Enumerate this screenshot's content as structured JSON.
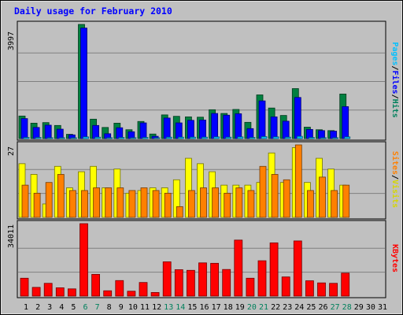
{
  "chart_data": [
    {
      "type": "bar",
      "title": "Daily usage for February 2010",
      "panel": "hits",
      "ymax_label": "3997",
      "ylim": [
        0,
        3997
      ],
      "categories": [
        "1",
        "2",
        "3",
        "4",
        "5",
        "6",
        "7",
        "8",
        "9",
        "10",
        "11",
        "12",
        "13",
        "14",
        "15",
        "16",
        "17",
        "18",
        "19",
        "20",
        "21",
        "22",
        "23",
        "24",
        "25",
        "26",
        "27",
        "28",
        "29",
        "30",
        "31"
      ],
      "right_label": [
        "Hits",
        "Files",
        "Pages"
      ],
      "series": [
        {
          "name": "Hits",
          "color": "#008040",
          "values": [
            790,
            540,
            560,
            460,
            150,
            3997,
            680,
            390,
            540,
            310,
            600,
            160,
            830,
            780,
            760,
            750,
            1010,
            880,
            1020,
            570,
            1530,
            1070,
            810,
            1750,
            400,
            310,
            280,
            1560,
            0,
            0,
            0
          ]
        },
        {
          "name": "Files",
          "color": "#0000ff",
          "values": [
            700,
            390,
            470,
            330,
            130,
            3870,
            460,
            170,
            380,
            240,
            550,
            80,
            720,
            550,
            640,
            650,
            880,
            820,
            870,
            350,
            1320,
            760,
            610,
            1440,
            320,
            280,
            260,
            1120,
            0,
            0,
            0
          ]
        },
        {
          "name": "Pages",
          "color": "#00c0ff",
          "values": [
            40,
            40,
            30,
            30,
            20,
            60,
            50,
            30,
            40,
            30,
            40,
            20,
            50,
            50,
            50,
            50,
            60,
            50,
            60,
            40,
            70,
            60,
            50,
            80,
            40,
            30,
            30,
            60,
            0,
            0,
            0
          ]
        }
      ]
    },
    {
      "type": "bar",
      "panel": "visits",
      "ymax_label": "27",
      "ylim": [
        0,
        27
      ],
      "categories": [
        "1",
        "2",
        "3",
        "4",
        "5",
        "6",
        "7",
        "8",
        "9",
        "10",
        "11",
        "12",
        "13",
        "14",
        "15",
        "16",
        "17",
        "18",
        "19",
        "20",
        "21",
        "22",
        "23",
        "24",
        "25",
        "26",
        "27",
        "28",
        "29",
        "30",
        "31"
      ],
      "right_label": [
        "Visits",
        "Sites"
      ],
      "series": [
        {
          "name": "Visits",
          "color": "#ffff00",
          "values": [
            20,
            16,
            5,
            19,
            11,
            17,
            19,
            11,
            18,
            9,
            10,
            11,
            11,
            14,
            22,
            20,
            17,
            12,
            12,
            12,
            13,
            24,
            13,
            26,
            13,
            22,
            18,
            12,
            0,
            0,
            0
          ]
        },
        {
          "name": "Sites",
          "color": "#ff8000",
          "values": [
            12,
            9,
            13,
            16,
            10,
            10,
            11,
            11,
            11,
            10,
            11,
            10,
            9,
            4,
            10,
            11,
            11,
            9,
            11,
            10,
            19,
            16,
            14,
            27,
            10,
            15,
            10,
            12,
            0,
            0,
            0
          ]
        }
      ]
    },
    {
      "type": "bar",
      "panel": "kbytes",
      "ymax_label": "34011",
      "ylim": [
        0,
        34011
      ],
      "categories": [
        "1",
        "2",
        "3",
        "4",
        "5",
        "6",
        "7",
        "8",
        "9",
        "10",
        "11",
        "12",
        "13",
        "14",
        "15",
        "16",
        "17",
        "18",
        "19",
        "20",
        "21",
        "22",
        "23",
        "24",
        "25",
        "26",
        "27",
        "28",
        "29",
        "30",
        "31"
      ],
      "right_label": [
        "KBytes"
      ],
      "series": [
        {
          "name": "KBytes",
          "color": "#ff0000",
          "values": [
            8400,
            4100,
            6000,
            3900,
            3400,
            34011,
            10200,
            2500,
            7300,
            2300,
            6400,
            1700,
            16100,
            12400,
            12100,
            15600,
            15400,
            12500,
            26300,
            8400,
            16600,
            25000,
            9000,
            25900,
            7200,
            6200,
            6000,
            10800,
            0,
            0,
            0
          ]
        }
      ]
    }
  ],
  "x_label_colors": {
    "weekday": "#000000",
    "weekend": "#00805c"
  },
  "weekend_days": [
    "6",
    "7",
    "13",
    "14",
    "20",
    "21",
    "27",
    "28"
  ]
}
